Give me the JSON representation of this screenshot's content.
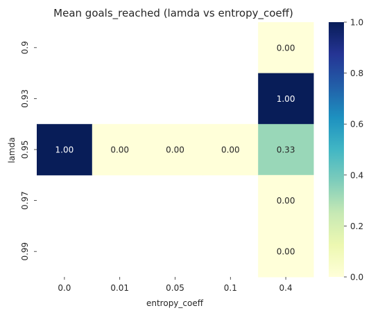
{
  "chart_data": {
    "type": "heatmap",
    "title": "Mean goals_reached (lamda vs entropy_coeff)",
    "xlabel": "entropy_coeff",
    "ylabel": "lamda",
    "x_categories": [
      "0.0",
      "0.01",
      "0.05",
      "0.1",
      "0.4"
    ],
    "y_categories": [
      "0.9",
      "0.93",
      "0.95",
      "0.97",
      "0.99"
    ],
    "values": [
      [
        null,
        null,
        null,
        null,
        0.0
      ],
      [
        null,
        null,
        null,
        null,
        1.0
      ],
      [
        1.0,
        0.0,
        0.0,
        0.0,
        0.33
      ],
      [
        null,
        null,
        null,
        null,
        0.0
      ],
      [
        null,
        null,
        null,
        null,
        0.0
      ]
    ],
    "cell_labels": [
      [
        null,
        null,
        null,
        null,
        "0.00"
      ],
      [
        null,
        null,
        null,
        null,
        "1.00"
      ],
      [
        "1.00",
        "0.00",
        "0.00",
        "0.00",
        "0.33"
      ],
      [
        null,
        null,
        null,
        null,
        "0.00"
      ],
      [
        null,
        null,
        null,
        null,
        "0.00"
      ]
    ],
    "colorbar": {
      "range": [
        0,
        1
      ],
      "ticks": [
        "0.0",
        "0.2",
        "0.4",
        "0.6",
        "0.8",
        "1.0"
      ]
    },
    "colormap": "YlGnBu"
  }
}
